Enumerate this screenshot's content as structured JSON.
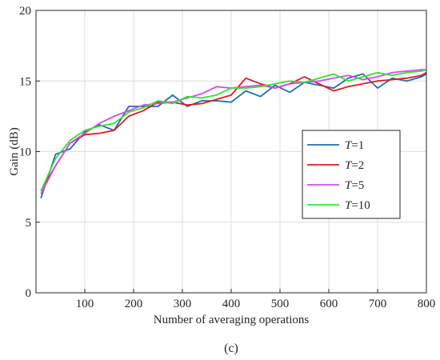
{
  "caption": "(c)",
  "chart_data": {
    "type": "line",
    "title": "",
    "xlabel": "Number of averaging operations",
    "ylabel": "Gain (dB)",
    "xlim": [
      0,
      800
    ],
    "ylim": [
      0,
      20
    ],
    "xticks": [
      100,
      200,
      300,
      400,
      500,
      600,
      700,
      800
    ],
    "yticks": [
      0,
      5,
      10,
      15,
      20
    ],
    "grid": true,
    "legend_position": "right-middle",
    "x": [
      10,
      40,
      70,
      100,
      130,
      160,
      190,
      220,
      250,
      280,
      310,
      340,
      370,
      400,
      430,
      460,
      490,
      520,
      550,
      580,
      610,
      640,
      670,
      700,
      730,
      760,
      790,
      800
    ],
    "series": [
      {
        "name": "T=1",
        "italic": "T",
        "suffix": "=1",
        "color": "#1f6fb4",
        "values": [
          6.7,
          9.8,
          10.2,
          11.4,
          11.9,
          11.5,
          13.2,
          13.2,
          13.2,
          14.0,
          13.2,
          13.6,
          13.6,
          13.5,
          14.3,
          13.9,
          14.7,
          14.2,
          14.9,
          14.7,
          14.5,
          15.2,
          15.5,
          14.5,
          15.2,
          15.0,
          15.3,
          15.5
        ]
      },
      {
        "name": "T=2",
        "italic": "T",
        "suffix": "=2",
        "color": "#e01a22",
        "values": [
          7.2,
          9.0,
          10.6,
          11.2,
          11.3,
          11.5,
          12.5,
          12.9,
          13.5,
          13.5,
          13.3,
          13.4,
          13.7,
          14.0,
          15.2,
          14.8,
          14.5,
          14.8,
          15.3,
          14.8,
          14.3,
          14.6,
          14.8,
          15.0,
          15.1,
          15.2,
          15.4,
          15.6
        ]
      },
      {
        "name": "T=5",
        "italic": "T",
        "suffix": "=5",
        "color": "#dc46f0",
        "values": [
          7.0,
          9.0,
          10.6,
          11.3,
          12.0,
          12.5,
          12.9,
          13.3,
          13.4,
          13.5,
          13.8,
          14.1,
          14.6,
          14.5,
          14.6,
          14.7,
          14.5,
          14.8,
          14.9,
          15.0,
          15.2,
          15.4,
          15.1,
          15.3,
          15.6,
          15.7,
          15.8,
          15.8
        ]
      },
      {
        "name": "T=10",
        "italic": "T",
        "suffix": "=10",
        "color": "#2ee62e",
        "values": [
          7.2,
          9.5,
          10.8,
          11.5,
          11.8,
          12.0,
          12.8,
          13.1,
          13.6,
          13.4,
          13.9,
          13.8,
          14.0,
          14.5,
          14.5,
          14.6,
          14.8,
          15.0,
          14.9,
          15.2,
          15.5,
          15.0,
          15.3,
          15.6,
          15.4,
          15.6,
          15.7,
          15.8
        ]
      }
    ]
  }
}
